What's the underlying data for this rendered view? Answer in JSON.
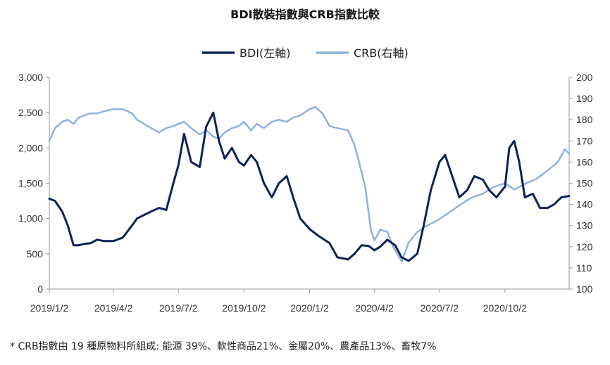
{
  "chart_data": {
    "type": "line",
    "title": "BDI散裝指數與CRB指數比較",
    "footnote": "* CRB指數由 19 種原物料所組成: 能源 39%、軟性商品21%、金屬20%、農產品13%、畜牧7%",
    "x_ticks": [
      "2019/1/2",
      "2019/4/2",
      "2019/7/2",
      "2019/10/2",
      "2020/1/2",
      "2020/4/2",
      "2020/7/2",
      "2020/10/2"
    ],
    "x_range": [
      "2019-01-02",
      "2020-12-31"
    ],
    "y_left": {
      "ylim": [
        0,
        3000
      ],
      "ticks": [
        "0",
        "500",
        "1,000",
        "1,500",
        "2,000",
        "2,500",
        "3,000"
      ]
    },
    "y_right": {
      "ylim": [
        100,
        200
      ],
      "ticks": [
        "100",
        "110",
        "120",
        "130",
        "140",
        "150",
        "160",
        "170",
        "180",
        "190",
        "200"
      ]
    },
    "legend_position": "top-center",
    "grid": false,
    "series": [
      {
        "name": "BDI(左軸)",
        "axis": "left",
        "color": "#0d2256",
        "x": [
          "2019-01-02",
          "2019-01-10",
          "2019-01-20",
          "2019-01-28",
          "2019-02-05",
          "2019-02-12",
          "2019-02-20",
          "2019-03-01",
          "2019-03-10",
          "2019-03-20",
          "2019-04-02",
          "2019-04-15",
          "2019-04-28",
          "2019-05-05",
          "2019-05-15",
          "2019-05-25",
          "2019-06-05",
          "2019-06-15",
          "2019-06-25",
          "2019-07-02",
          "2019-07-10",
          "2019-07-20",
          "2019-08-01",
          "2019-08-10",
          "2019-08-20",
          "2019-08-28",
          "2019-09-05",
          "2019-09-15",
          "2019-09-25",
          "2019-10-02",
          "2019-10-12",
          "2019-10-20",
          "2019-10-30",
          "2019-11-10",
          "2019-11-20",
          "2019-12-01",
          "2019-12-10",
          "2019-12-20",
          "2020-01-02",
          "2020-01-15",
          "2020-01-30",
          "2020-02-10",
          "2020-02-25",
          "2020-03-05",
          "2020-03-15",
          "2020-03-25",
          "2020-04-02",
          "2020-04-10",
          "2020-04-20",
          "2020-05-01",
          "2020-05-10",
          "2020-05-20",
          "2020-06-01",
          "2020-06-10",
          "2020-06-20",
          "2020-07-02",
          "2020-07-10",
          "2020-07-20",
          "2020-07-30",
          "2020-08-10",
          "2020-08-20",
          "2020-09-01",
          "2020-09-10",
          "2020-09-20",
          "2020-10-02",
          "2020-10-08",
          "2020-10-15",
          "2020-10-22",
          "2020-10-30",
          "2020-11-10",
          "2020-11-20",
          "2020-12-01",
          "2020-12-10",
          "2020-12-20",
          "2020-12-31"
        ],
        "values": [
          1280,
          1250,
          1100,
          900,
          620,
          620,
          640,
          650,
          700,
          680,
          680,
          730,
          900,
          1000,
          1050,
          1100,
          1150,
          1120,
          1500,
          1750,
          2200,
          1800,
          1730,
          2300,
          2500,
          2100,
          1850,
          2000,
          1800,
          1750,
          1900,
          1800,
          1500,
          1300,
          1500,
          1600,
          1300,
          1000,
          850,
          750,
          650,
          450,
          420,
          500,
          620,
          610,
          550,
          600,
          700,
          620,
          450,
          400,
          500,
          900,
          1400,
          1800,
          1900,
          1600,
          1300,
          1400,
          1600,
          1550,
          1400,
          1300,
          1450,
          2000,
          2100,
          1800,
          1300,
          1350,
          1150,
          1150,
          1200,
          1300,
          1320
        ]
      },
      {
        "name": "CRB(右軸)",
        "axis": "right",
        "color": "#8fb1dd",
        "x": [
          "2019-01-02",
          "2019-01-10",
          "2019-01-20",
          "2019-01-28",
          "2019-02-05",
          "2019-02-12",
          "2019-02-20",
          "2019-03-01",
          "2019-03-10",
          "2019-03-20",
          "2019-04-02",
          "2019-04-15",
          "2019-04-28",
          "2019-05-05",
          "2019-05-15",
          "2019-05-25",
          "2019-06-05",
          "2019-06-15",
          "2019-06-25",
          "2019-07-02",
          "2019-07-10",
          "2019-07-20",
          "2019-08-01",
          "2019-08-10",
          "2019-08-20",
          "2019-08-28",
          "2019-09-05",
          "2019-09-15",
          "2019-09-25",
          "2019-10-02",
          "2019-10-12",
          "2019-10-20",
          "2019-10-30",
          "2019-11-10",
          "2019-11-20",
          "2019-12-01",
          "2019-12-10",
          "2019-12-20",
          "2020-01-02",
          "2020-01-10",
          "2020-01-20",
          "2020-01-30",
          "2020-02-10",
          "2020-02-25",
          "2020-03-05",
          "2020-03-10",
          "2020-03-20",
          "2020-03-28",
          "2020-04-02",
          "2020-04-10",
          "2020-04-20",
          "2020-04-28",
          "2020-05-10",
          "2020-05-20",
          "2020-06-01",
          "2020-06-15",
          "2020-07-02",
          "2020-07-15",
          "2020-08-01",
          "2020-08-15",
          "2020-09-01",
          "2020-09-15",
          "2020-10-02",
          "2020-10-15",
          "2020-11-01",
          "2020-11-15",
          "2020-12-01",
          "2020-12-15",
          "2020-12-25",
          "2020-12-31"
        ],
        "values": [
          170,
          176,
          179,
          180,
          178,
          181,
          182,
          183,
          183,
          184,
          185,
          185,
          183,
          180,
          178,
          176,
          174,
          176,
          177,
          178,
          179,
          176,
          173,
          175,
          172,
          171,
          174,
          176,
          177,
          179,
          175,
          178,
          176,
          179,
          180,
          179,
          181,
          182,
          185,
          186,
          183,
          177,
          176,
          175,
          168,
          162,
          148,
          128,
          123,
          128,
          127,
          120,
          113,
          122,
          127,
          130,
          133,
          136,
          140,
          143,
          145,
          148,
          150,
          147,
          150,
          152,
          156,
          160,
          166,
          164
        ]
      }
    ]
  }
}
